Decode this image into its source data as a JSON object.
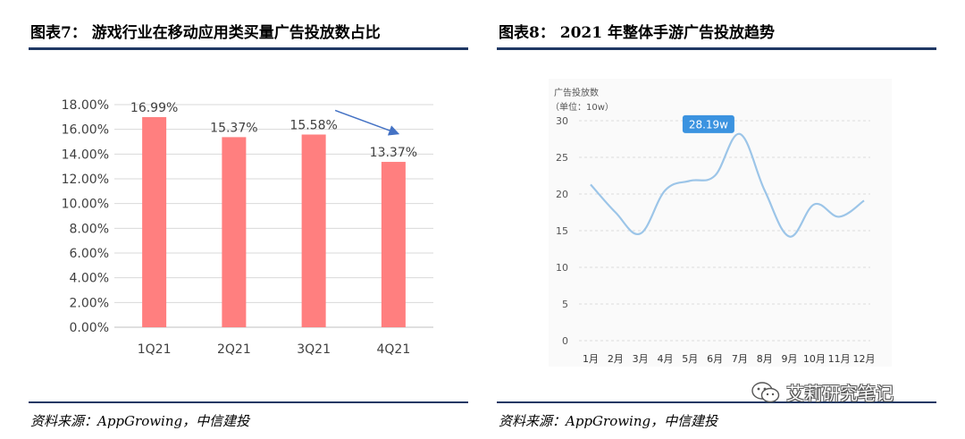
{
  "left": {
    "title": "图表7： 游戏行业在移动应用类买量广告投放数占比",
    "source": "资料来源：AppGrowing，中信建投"
  },
  "right": {
    "title": "图表8： 2021 年整体手游广告投放趋势",
    "source": "资料来源：AppGrowing，中信建投"
  },
  "watermark": "艾莉研究笔记",
  "chart_data": [
    {
      "type": "bar",
      "categories": [
        "1Q21",
        "2Q21",
        "3Q21",
        "4Q21"
      ],
      "values": [
        16.99,
        15.37,
        15.58,
        13.37
      ],
      "data_labels": [
        "16.99%",
        "15.37%",
        "15.58%",
        "13.37%"
      ],
      "ylim": [
        0,
        18
      ],
      "yticks": [
        "0.00%",
        "2.00%",
        "4.00%",
        "6.00%",
        "8.00%",
        "10.00%",
        "12.00%",
        "14.00%",
        "16.00%",
        "18.00%"
      ],
      "ytick_values": [
        0,
        2,
        4,
        6,
        8,
        10,
        12,
        14,
        16,
        18
      ],
      "bar_color": "#ff7f7f",
      "annotation": "arrow from 3Q21 to 4Q21 indicating decline",
      "arrow_color": "#4472c4",
      "grid": true
    },
    {
      "type": "line",
      "title": "广告投放数",
      "unit_label": "（单位：10w）",
      "categories": [
        "1月",
        "2月",
        "3月",
        "4月",
        "5月",
        "6月",
        "7月",
        "8月",
        "9月",
        "10月",
        "11月",
        "12月"
      ],
      "values": [
        21.3,
        17.5,
        14.6,
        20.5,
        21.8,
        22.5,
        28.19,
        20.5,
        14.2,
        18.6,
        16.9,
        19.1
      ],
      "ylim": [
        0,
        30
      ],
      "yticks": [
        "0",
        "5",
        "10",
        "15",
        "20",
        "25",
        "30"
      ],
      "ytick_values": [
        0,
        5,
        10,
        15,
        20,
        25,
        30
      ],
      "tooltip": "28.19w",
      "tooltip_index": 6,
      "line_color": "#9cc5e8",
      "tooltip_color": "#3b93e0",
      "grid": true
    }
  ]
}
